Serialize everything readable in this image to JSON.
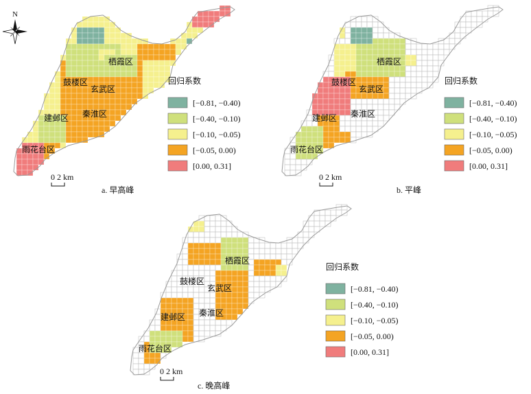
{
  "north_label": "N",
  "scale_label": "0  2 km",
  "legend": {
    "title": "回归系数",
    "classes": [
      {
        "label": "[−0.81, −0.40)",
        "color": "#7fb2a0"
      },
      {
        "label": "[−0.40, −0.10)",
        "color": "#cfe07c"
      },
      {
        "label": "[−0.10, −0.05)",
        "color": "#f5f08e"
      },
      {
        "label": "[−0.05, 0.00)",
        "color": "#f4a423"
      },
      {
        "label": "[0.00, 0.31]",
        "color": "#f07c7c"
      }
    ]
  },
  "maps": [
    {
      "id": "a",
      "caption": "a. 早高峰",
      "districts": [
        "栖霞区",
        "鼓楼区",
        "玄武区",
        "秦淮区",
        "建邺区",
        "雨花台区"
      ]
    },
    {
      "id": "b",
      "caption": "b. 平峰",
      "districts": [
        "栖霞区",
        "鼓楼区",
        "玄武区",
        "秦淮区",
        "建邺区",
        "雨花台区"
      ]
    },
    {
      "id": "c",
      "caption": "c. 晚高峰",
      "districts": [
        "栖霞区",
        "鼓楼区",
        "玄武区",
        "秦淮区",
        "建邺区",
        "雨花台区"
      ]
    }
  ]
}
